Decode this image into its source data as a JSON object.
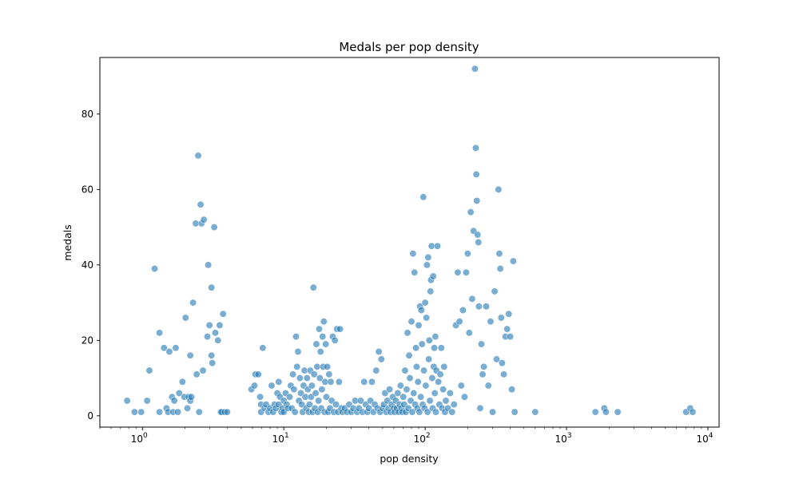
{
  "chart_data": {
    "type": "scatter",
    "title": "Medals per pop density",
    "xlabel": "pop density",
    "ylabel": "medals",
    "x_scale": "log",
    "xlim": [
      0.5,
      12000
    ],
    "ylim": [
      -3,
      95
    ],
    "x_ticks": [
      {
        "value": 1,
        "base": "10",
        "exp": "0"
      },
      {
        "value": 10,
        "base": "10",
        "exp": "1"
      },
      {
        "value": 100,
        "base": "10",
        "exp": "2"
      },
      {
        "value": 1000,
        "base": "10",
        "exp": "3"
      },
      {
        "value": 10000,
        "base": "10",
        "exp": "4"
      }
    ],
    "y_ticks": [
      {
        "value": 0,
        "label": "0"
      },
      {
        "value": 20,
        "label": "20"
      },
      {
        "value": 40,
        "label": "40"
      },
      {
        "value": 60,
        "label": "60"
      },
      {
        "value": 80,
        "label": "80"
      }
    ],
    "grid": false,
    "legend": "none",
    "marker_color": "#1f77b4",
    "marker_opacity": 0.6,
    "points": [
      [
        0.78,
        4
      ],
      [
        0.88,
        1
      ],
      [
        0.98,
        1
      ],
      [
        1.08,
        4
      ],
      [
        1.12,
        12
      ],
      [
        1.22,
        39
      ],
      [
        1.32,
        22
      ],
      [
        1.32,
        1
      ],
      [
        1.42,
        18
      ],
      [
        1.48,
        2
      ],
      [
        1.52,
        1
      ],
      [
        1.55,
        17
      ],
      [
        1.62,
        5
      ],
      [
        1.65,
        1
      ],
      [
        1.68,
        4
      ],
      [
        1.72,
        18
      ],
      [
        1.78,
        1
      ],
      [
        1.82,
        6
      ],
      [
        1.92,
        9
      ],
      [
        1.98,
        5
      ],
      [
        2.02,
        26
      ],
      [
        2.08,
        2
      ],
      [
        2.12,
        5
      ],
      [
        2.18,
        4
      ],
      [
        2.18,
        16
      ],
      [
        2.22,
        5
      ],
      [
        2.28,
        30
      ],
      [
        2.38,
        51
      ],
      [
        2.42,
        11
      ],
      [
        2.48,
        69
      ],
      [
        2.52,
        1
      ],
      [
        2.58,
        56
      ],
      [
        2.62,
        51
      ],
      [
        2.68,
        12
      ],
      [
        2.72,
        52
      ],
      [
        2.88,
        21
      ],
      [
        2.92,
        40
      ],
      [
        2.98,
        24
      ],
      [
        3.08,
        34
      ],
      [
        3.08,
        16
      ],
      [
        3.12,
        14
      ],
      [
        3.22,
        50
      ],
      [
        3.28,
        22
      ],
      [
        3.42,
        20
      ],
      [
        3.52,
        24
      ],
      [
        3.58,
        1
      ],
      [
        3.62,
        1
      ],
      [
        3.72,
        27
      ],
      [
        3.82,
        1
      ],
      [
        3.98,
        1
      ],
      [
        5.9,
        7
      ],
      [
        6.2,
        8
      ],
      [
        6.3,
        11
      ],
      [
        6.6,
        11
      ],
      [
        6.8,
        5
      ],
      [
        6.9,
        3
      ],
      [
        6.9,
        1
      ],
      [
        7.1,
        18
      ],
      [
        7.3,
        2
      ],
      [
        7.5,
        3
      ],
      [
        7.8,
        1
      ],
      [
        8,
        2
      ],
      [
        8.2,
        8
      ],
      [
        8.4,
        1
      ],
      [
        8.6,
        3
      ],
      [
        8.8,
        2
      ],
      [
        9,
        6
      ],
      [
        9.2,
        3
      ],
      [
        9.2,
        9
      ],
      [
        9.4,
        5
      ],
      [
        9.6,
        1
      ],
      [
        9.8,
        2
      ],
      [
        10,
        4
      ],
      [
        10,
        1
      ],
      [
        10.3,
        6
      ],
      [
        10.5,
        3
      ],
      [
        10.7,
        2
      ],
      [
        11,
        5
      ],
      [
        11.2,
        8
      ],
      [
        11.4,
        2
      ],
      [
        11.6,
        11
      ],
      [
        11.8,
        7
      ],
      [
        12,
        1
      ],
      [
        12.2,
        21
      ],
      [
        12.4,
        13
      ],
      [
        12.6,
        17
      ],
      [
        12.8,
        4
      ],
      [
        13,
        10
      ],
      [
        13.2,
        6
      ],
      [
        13.4,
        3
      ],
      [
        13.6,
        1
      ],
      [
        13.8,
        8
      ],
      [
        14,
        12
      ],
      [
        14.2,
        5
      ],
      [
        14.4,
        2
      ],
      [
        14.6,
        10
      ],
      [
        14.8,
        7
      ],
      [
        15,
        1
      ],
      [
        15.2,
        3
      ],
      [
        15.4,
        12
      ],
      [
        15.6,
        5
      ],
      [
        15.8,
        8
      ],
      [
        16,
        1
      ],
      [
        16.2,
        34
      ],
      [
        16.4,
        11
      ],
      [
        16.6,
        2
      ],
      [
        16.8,
        6
      ],
      [
        17,
        19
      ],
      [
        17.2,
        13
      ],
      [
        17.4,
        1
      ],
      [
        17.6,
        4
      ],
      [
        17.8,
        23
      ],
      [
        18,
        10
      ],
      [
        18.2,
        17
      ],
      [
        18.4,
        2
      ],
      [
        18.6,
        7
      ],
      [
        18.8,
        21
      ],
      [
        19,
        13
      ],
      [
        19.2,
        25
      ],
      [
        19.4,
        1
      ],
      [
        19.6,
        9
      ],
      [
        19.8,
        19
      ],
      [
        20,
        5
      ],
      [
        20.3,
        13
      ],
      [
        20.6,
        1
      ],
      [
        20.9,
        11
      ],
      [
        21.2,
        2
      ],
      [
        21.5,
        9
      ],
      [
        21.8,
        4
      ],
      [
        22.2,
        21
      ],
      [
        22.6,
        1
      ],
      [
        23,
        20
      ],
      [
        23.4,
        3
      ],
      [
        23.8,
        23
      ],
      [
        24.2,
        1
      ],
      [
        24.6,
        9
      ],
      [
        25,
        23
      ],
      [
        25.5,
        2
      ],
      [
        26,
        1
      ],
      [
        27,
        2
      ],
      [
        28,
        1
      ],
      [
        29,
        3
      ],
      [
        30,
        1
      ],
      [
        31,
        2
      ],
      [
        32,
        4
      ],
      [
        33,
        1
      ],
      [
        34,
        2
      ],
      [
        35,
        4
      ],
      [
        36,
        1
      ],
      [
        37,
        9
      ],
      [
        38,
        3
      ],
      [
        39,
        1
      ],
      [
        40,
        2
      ],
      [
        41,
        4
      ],
      [
        42,
        9
      ],
      [
        43,
        1
      ],
      [
        44,
        3
      ],
      [
        45,
        12
      ],
      [
        46,
        2
      ],
      [
        47,
        17
      ],
      [
        48,
        1
      ],
      [
        49,
        15
      ],
      [
        50,
        2
      ],
      [
        51,
        3
      ],
      [
        52,
        6
      ],
      [
        53,
        1
      ],
      [
        54,
        4
      ],
      [
        55,
        2
      ],
      [
        56,
        7
      ],
      [
        57,
        1
      ],
      [
        58,
        3
      ],
      [
        59,
        5
      ],
      [
        60,
        2
      ],
      [
        61,
        1
      ],
      [
        62,
        4
      ],
      [
        63,
        2
      ],
      [
        64,
        6
      ],
      [
        65,
        1
      ],
      [
        66,
        3
      ],
      [
        67,
        8
      ],
      [
        68,
        2
      ],
      [
        69,
        1
      ],
      [
        70,
        5
      ],
      [
        71,
        3
      ],
      [
        72,
        12
      ],
      [
        73,
        1
      ],
      [
        74,
        7
      ],
      [
        75,
        22
      ],
      [
        76,
        2
      ],
      [
        77,
        16
      ],
      [
        78,
        10
      ],
      [
        79,
        4
      ],
      [
        80,
        25
      ],
      [
        81,
        1
      ],
      [
        82,
        43
      ],
      [
        83,
        6
      ],
      [
        84,
        38
      ],
      [
        85,
        3
      ],
      [
        86,
        18
      ],
      [
        87,
        13
      ],
      [
        88,
        2
      ],
      [
        89,
        9
      ],
      [
        90,
        24
      ],
      [
        91,
        1
      ],
      [
        92,
        29
      ],
      [
        93,
        5
      ],
      [
        94,
        28
      ],
      [
        95,
        19
      ],
      [
        96,
        3
      ],
      [
        97,
        58
      ],
      [
        98,
        12
      ],
      [
        99,
        2
      ],
      [
        100,
        30
      ],
      [
        101,
        8
      ],
      [
        102,
        26
      ],
      [
        103,
        40
      ],
      [
        104,
        1
      ],
      [
        105,
        42
      ],
      [
        106,
        15
      ],
      [
        107,
        20
      ],
      [
        108,
        4
      ],
      [
        109,
        33
      ],
      [
        110,
        36
      ],
      [
        111,
        45
      ],
      [
        112,
        10
      ],
      [
        113,
        2
      ],
      [
        114,
        37
      ],
      [
        115,
        13
      ],
      [
        116,
        18
      ],
      [
        117,
        6
      ],
      [
        118,
        21
      ],
      [
        119,
        1
      ],
      [
        120,
        12
      ],
      [
        122,
        45
      ],
      [
        124,
        9
      ],
      [
        126,
        3
      ],
      [
        128,
        11
      ],
      [
        130,
        18
      ],
      [
        132,
        2
      ],
      [
        134,
        7
      ],
      [
        136,
        13
      ],
      [
        138,
        1
      ],
      [
        140,
        4
      ],
      [
        145,
        2
      ],
      [
        150,
        6
      ],
      [
        155,
        1
      ],
      [
        160,
        3
      ],
      [
        165,
        24
      ],
      [
        170,
        38
      ],
      [
        175,
        25
      ],
      [
        180,
        8
      ],
      [
        185,
        28
      ],
      [
        190,
        5
      ],
      [
        195,
        38
      ],
      [
        200,
        43
      ],
      [
        205,
        22
      ],
      [
        210,
        54
      ],
      [
        215,
        31
      ],
      [
        220,
        49
      ],
      [
        225,
        92
      ],
      [
        228,
        71
      ],
      [
        230,
        64
      ],
      [
        232,
        57
      ],
      [
        235,
        48
      ],
      [
        238,
        46
      ],
      [
        240,
        29
      ],
      [
        245,
        2
      ],
      [
        250,
        19
      ],
      [
        255,
        11
      ],
      [
        260,
        13
      ],
      [
        270,
        29
      ],
      [
        280,
        8
      ],
      [
        290,
        25
      ],
      [
        300,
        1
      ],
      [
        310,
        33
      ],
      [
        320,
        15
      ],
      [
        330,
        60
      ],
      [
        335,
        43
      ],
      [
        340,
        39
      ],
      [
        345,
        26
      ],
      [
        350,
        14
      ],
      [
        360,
        11
      ],
      [
        370,
        21
      ],
      [
        380,
        23
      ],
      [
        390,
        27
      ],
      [
        400,
        21
      ],
      [
        410,
        7
      ],
      [
        420,
        41
      ],
      [
        430,
        1
      ],
      [
        600,
        1
      ],
      [
        1600,
        1
      ],
      [
        1850,
        2
      ],
      [
        1900,
        1
      ],
      [
        2300,
        1
      ],
      [
        7000,
        1
      ],
      [
        7500,
        2
      ],
      [
        7800,
        1
      ]
    ]
  }
}
